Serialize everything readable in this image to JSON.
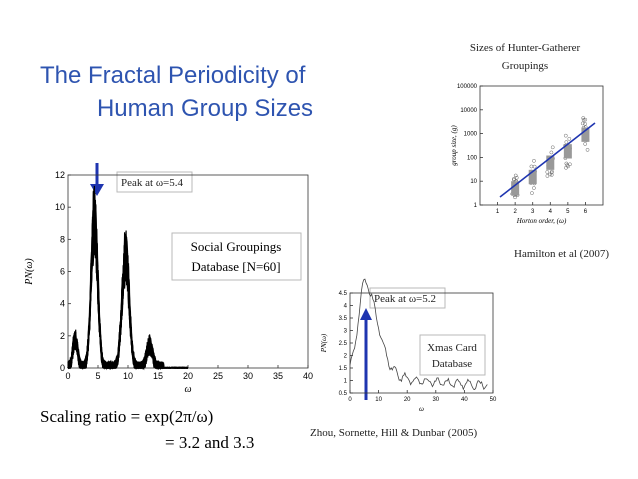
{
  "slide": {
    "title": [
      "The Fractal Periodicity of",
      "Human Group Sizes"
    ],
    "left_chart": {
      "y_label": "PN(ω)",
      "x_label": "ω",
      "ylim": [
        0,
        12
      ],
      "yticks": [
        0,
        2,
        4,
        6,
        8,
        10,
        12
      ],
      "xlim": [
        0,
        40
      ],
      "xticks": [
        0,
        5,
        10,
        15,
        20,
        25,
        30,
        35,
        40
      ],
      "peak_label": "Peak at ω=5.4",
      "database_label": [
        "Social Groupings",
        "Database [N=60]"
      ]
    },
    "right_chart": {
      "y_label": "PN(ω)",
      "x_label": "ω",
      "ylim": [
        0.5,
        4.5
      ],
      "yticks": [
        0.5,
        1,
        1.5,
        2,
        2.5,
        3,
        3.5,
        4,
        4.5
      ],
      "xlim": [
        0,
        50
      ],
      "xticks": [
        0,
        10,
        20,
        30,
        40,
        50
      ],
      "peak_label": "Peak at ω=5.2",
      "database_label": [
        "Xmas Card",
        "Database"
      ],
      "citation": "Zhou, Sornette, Hill & Dunbar (2005)"
    },
    "top_chart": {
      "title": [
        "Sizes of Hunter-Gatherer",
        "Groupings"
      ],
      "y_label": "group size, (g)",
      "x_label": "Horton order, (ω)",
      "log_y": true,
      "ylim": [
        1,
        100000
      ],
      "yticks": [
        1,
        10,
        100,
        1000,
        10000,
        100000
      ],
      "xlim": [
        0,
        7
      ],
      "xticks": [
        1,
        2,
        3,
        4,
        5,
        6
      ],
      "citation": "Hamilton et al (2007)"
    },
    "scaling": [
      "Scaling ratio = exp(2π/ω)",
      "= 3.2 and 3.3"
    ]
  }
}
